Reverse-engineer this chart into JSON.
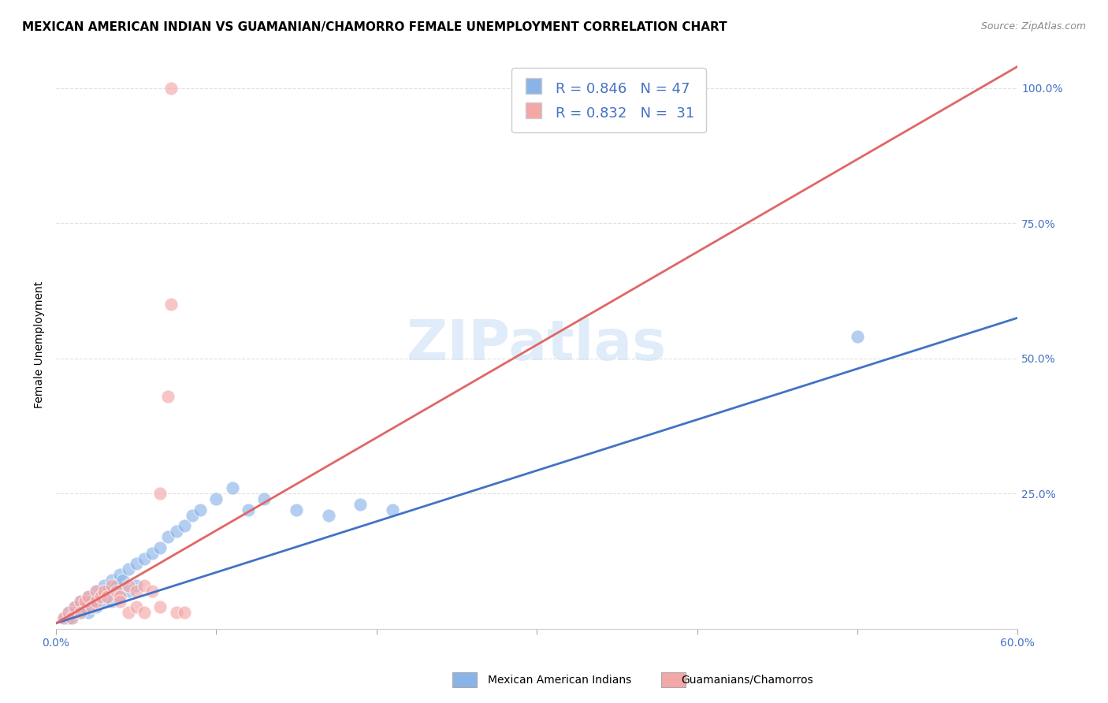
{
  "title": "MEXICAN AMERICAN INDIAN VS GUAMANIAN/CHAMORRO FEMALE UNEMPLOYMENT CORRELATION CHART",
  "source": "Source: ZipAtlas.com",
  "ylabel": "Female Unemployment",
  "xlim": [
    0.0,
    0.6
  ],
  "ylim": [
    0.0,
    1.05
  ],
  "ytick_labels": [
    "25.0%",
    "50.0%",
    "75.0%",
    "100.0%"
  ],
  "ytick_values": [
    0.25,
    0.5,
    0.75,
    1.0
  ],
  "watermark": "ZIPatlas",
  "blue_color": "#8ab4e8",
  "pink_color": "#f4a7a7",
  "blue_line_color": "#4472c4",
  "pink_line_color": "#e06666",
  "text_blue": "#4472c4",
  "blue_scatter_x": [
    0.005,
    0.008,
    0.01,
    0.012,
    0.015,
    0.015,
    0.018,
    0.02,
    0.02,
    0.022,
    0.025,
    0.025,
    0.028,
    0.03,
    0.03,
    0.032,
    0.035,
    0.035,
    0.038,
    0.04,
    0.04,
    0.042,
    0.045,
    0.045,
    0.05,
    0.05,
    0.055,
    0.06,
    0.065,
    0.07,
    0.075,
    0.08,
    0.085,
    0.09,
    0.1,
    0.11,
    0.12,
    0.13,
    0.15,
    0.17,
    0.19,
    0.21,
    0.5,
    0.008,
    0.012,
    0.018,
    0.022
  ],
  "blue_scatter_y": [
    0.02,
    0.03,
    0.02,
    0.04,
    0.05,
    0.03,
    0.04,
    0.06,
    0.03,
    0.05,
    0.07,
    0.04,
    0.06,
    0.08,
    0.05,
    0.07,
    0.09,
    0.05,
    0.08,
    0.1,
    0.06,
    0.09,
    0.11,
    0.07,
    0.12,
    0.08,
    0.13,
    0.14,
    0.15,
    0.17,
    0.18,
    0.19,
    0.21,
    0.22,
    0.24,
    0.26,
    0.22,
    0.24,
    0.22,
    0.21,
    0.23,
    0.22,
    0.54,
    0.02,
    0.03,
    0.04,
    0.05
  ],
  "pink_scatter_x": [
    0.005,
    0.008,
    0.01,
    0.012,
    0.015,
    0.015,
    0.018,
    0.02,
    0.022,
    0.025,
    0.025,
    0.028,
    0.03,
    0.032,
    0.035,
    0.038,
    0.04,
    0.045,
    0.05,
    0.055,
    0.06,
    0.065,
    0.07,
    0.075,
    0.04,
    0.045,
    0.05,
    0.055,
    0.065,
    0.08,
    0.072
  ],
  "pink_scatter_y": [
    0.02,
    0.03,
    0.02,
    0.04,
    0.05,
    0.03,
    0.05,
    0.06,
    0.04,
    0.07,
    0.05,
    0.06,
    0.07,
    0.06,
    0.08,
    0.07,
    0.06,
    0.08,
    0.07,
    0.08,
    0.07,
    0.25,
    0.43,
    0.03,
    0.05,
    0.03,
    0.04,
    0.03,
    0.04,
    0.03,
    0.6
  ],
  "blue_line_x": [
    0.0,
    0.6
  ],
  "blue_line_y": [
    0.01,
    0.575
  ],
  "pink_line_x": [
    0.0,
    0.6
  ],
  "pink_line_y": [
    0.01,
    1.04
  ],
  "pink_outlier_x": [
    0.072
  ],
  "pink_outlier_y": [
    1.0
  ],
  "grid_color": "#e0e0e0",
  "bg_color": "#ffffff",
  "title_fontsize": 11,
  "axis_label_fontsize": 10,
  "tick_fontsize": 10,
  "watermark_fontsize": 52,
  "watermark_color": "#cce0f5",
  "watermark_alpha": 0.6,
  "legend_fontsize": 13
}
